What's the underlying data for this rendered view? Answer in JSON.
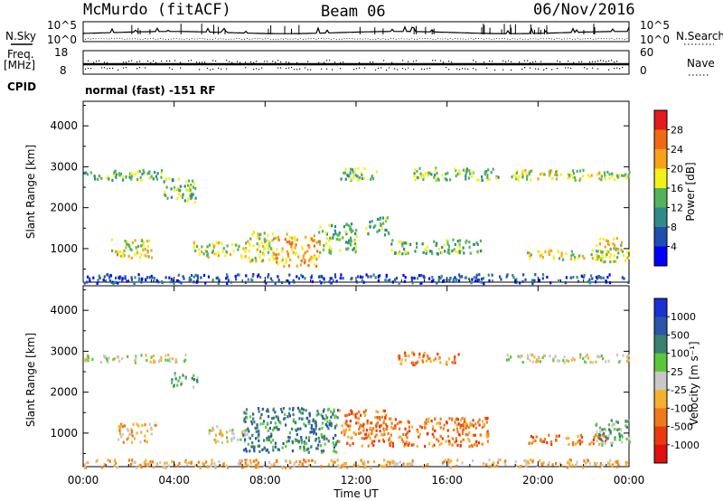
{
  "header": {
    "station": "McMurdo (fitACF)",
    "beam": "Beam 06",
    "date": "06/Nov/2016",
    "mode": "normal (fast) -151 RF"
  },
  "noise_panel": {
    "left_label": "N.Sky",
    "right_label": "N.Search",
    "left_ticks": [
      "10^5",
      "10^0"
    ],
    "right_ticks": [
      "10^5",
      "10^0"
    ]
  },
  "freq_panel": {
    "left_label_line1": "Freq.",
    "left_label_line2": "[MHz]",
    "right_label": "Nave",
    "cpid_label": "CPID",
    "left_ticks": [
      "18",
      "8"
    ],
    "right_ticks": [
      "60",
      "0"
    ]
  },
  "chart_data": [
    {
      "type": "heatmap",
      "name": "power",
      "title": "",
      "xlabel": "",
      "ylabel": "Slant Range [km]",
      "xlim": [
        0,
        24
      ],
      "ylim": [
        180,
        4600
      ],
      "x_ticks": [
        0,
        4,
        8,
        12,
        16,
        20,
        24
      ],
      "y_ticks": [
        1000,
        2000,
        3000,
        4000
      ],
      "y_tick_labels": [
        "1000",
        "2000",
        "3000",
        "4000"
      ],
      "colorbar": {
        "label": "Power [dB]",
        "ticks": [
          "4",
          "8",
          "12",
          "16",
          "20",
          "24",
          "28"
        ],
        "colors": [
          "#0000ff",
          "#1e4fb0",
          "#2f8a8a",
          "#53b35a",
          "#f2f21a",
          "#f7a21a",
          "#f06a14",
          "#e41c1c"
        ]
      },
      "scatter_regions": [
        {
          "x0": 0.0,
          "x1": 3.5,
          "r0": 2700,
          "r1": 2950,
          "level": 3
        },
        {
          "x0": 3.5,
          "x1": 5.0,
          "r0": 2150,
          "r1": 2750,
          "level": 3
        },
        {
          "x0": 1.2,
          "x1": 3.0,
          "r0": 800,
          "r1": 1250,
          "level": 4
        },
        {
          "x0": 4.8,
          "x1": 7.0,
          "r0": 800,
          "r1": 1200,
          "level": 4
        },
        {
          "x0": 7.0,
          "x1": 8.4,
          "r0": 700,
          "r1": 1450,
          "level": 4
        },
        {
          "x0": 8.4,
          "x1": 10.4,
          "r0": 600,
          "r1": 1400,
          "level": 5
        },
        {
          "x0": 10.3,
          "x1": 12.0,
          "r0": 900,
          "r1": 1650,
          "level": 3
        },
        {
          "x0": 12.4,
          "x1": 13.4,
          "r0": 1350,
          "r1": 1800,
          "level": 3
        },
        {
          "x0": 13.5,
          "x1": 17.5,
          "r0": 900,
          "r1": 1250,
          "level": 3
        },
        {
          "x0": 11.3,
          "x1": 12.9,
          "r0": 2700,
          "r1": 3000,
          "level": 3
        },
        {
          "x0": 14.5,
          "x1": 18.3,
          "r0": 2700,
          "r1": 3000,
          "level": 3
        },
        {
          "x0": 18.8,
          "x1": 24.0,
          "r0": 2700,
          "r1": 2950,
          "level": 4
        },
        {
          "x0": 19.5,
          "x1": 22.8,
          "r0": 750,
          "r1": 1000,
          "level": 4
        },
        {
          "x0": 22.5,
          "x1": 24.0,
          "r0": 700,
          "r1": 1300,
          "level": 4
        },
        {
          "x0": 0.0,
          "x1": 24.0,
          "r0": 180,
          "r1": 400,
          "level": 1
        }
      ]
    },
    {
      "type": "heatmap",
      "name": "velocity",
      "title": "",
      "xlabel": "Time UT",
      "ylabel": "Slant Range [km]",
      "xlim": [
        0,
        24
      ],
      "ylim": [
        180,
        4600
      ],
      "x_ticks": [
        0,
        4,
        8,
        12,
        16,
        20,
        24
      ],
      "x_tick_labels": [
        "00:00",
        "04:00",
        "08:00",
        "12:00",
        "16:00",
        "20:00",
        "00:00"
      ],
      "y_ticks": [
        1000,
        2000,
        3000,
        4000
      ],
      "y_tick_labels": [
        "1000",
        "2000",
        "3000",
        "4000"
      ],
      "colorbar": {
        "label": "Velocity [m s⁻¹]",
        "ticks": [
          "1000",
          "500",
          "100",
          "25",
          "-25",
          "-100",
          "-500",
          "-1000"
        ],
        "colors": [
          "#1a2fd4",
          "#2a55a8",
          "#3a7f70",
          "#5ac83c",
          "#c8c8c8",
          "#f5b030",
          "#f07a1a",
          "#e83a10",
          "#e01010"
        ]
      },
      "scatter_regions": [
        {
          "x0": 0.0,
          "x1": 4.5,
          "r0": 2750,
          "r1": 2950,
          "level": 4
        },
        {
          "x0": 3.8,
          "x1": 5.0,
          "r0": 2150,
          "r1": 2500,
          "level": 3
        },
        {
          "x0": 1.5,
          "x1": 3.2,
          "r0": 800,
          "r1": 1250,
          "level": 5
        },
        {
          "x0": 5.5,
          "x1": 7.3,
          "r0": 800,
          "r1": 1200,
          "level": 4
        },
        {
          "x0": 7.0,
          "x1": 11.2,
          "r0": 550,
          "r1": 1650,
          "level": 2
        },
        {
          "x0": 11.2,
          "x1": 13.3,
          "r0": 700,
          "r1": 1600,
          "level": 6
        },
        {
          "x0": 13.3,
          "x1": 17.8,
          "r0": 700,
          "r1": 1400,
          "level": 6
        },
        {
          "x0": 13.8,
          "x1": 16.5,
          "r0": 2700,
          "r1": 3000,
          "level": 6
        },
        {
          "x0": 18.5,
          "x1": 24.0,
          "r0": 2750,
          "r1": 2950,
          "level": 4
        },
        {
          "x0": 19.5,
          "x1": 23.0,
          "r0": 750,
          "r1": 1000,
          "level": 6
        },
        {
          "x0": 22.5,
          "x1": 24.0,
          "r0": 700,
          "r1": 1350,
          "level": 3
        },
        {
          "x0": 0.0,
          "x1": 24.0,
          "r0": 180,
          "r1": 380,
          "level": 5
        }
      ]
    }
  ]
}
